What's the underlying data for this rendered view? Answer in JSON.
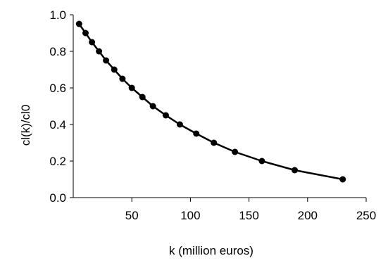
{
  "chart_data": {
    "type": "line",
    "title": "",
    "xlabel": "k (million euros)",
    "ylabel": "cl(k)/cl0",
    "xlim": [
      0,
      250
    ],
    "ylim": [
      0,
      1
    ],
    "x_ticks": [
      50,
      100,
      150,
      200,
      250
    ],
    "x_tick_labels": [
      "50",
      "100",
      "150",
      "200",
      "250"
    ],
    "y_ticks": [
      0,
      0.2,
      0.4,
      0.6,
      0.8,
      1.0
    ],
    "y_tick_labels": [
      "0.0",
      "0.2",
      "0.4",
      "0.6",
      "0.8",
      "1.0"
    ],
    "grid": false,
    "legend": "none",
    "series": [
      {
        "color": "#000000",
        "marker": "circle",
        "points": [
          {
            "x": 5,
            "y": 0.95
          },
          {
            "x": 10.5,
            "y": 0.9
          },
          {
            "x": 16,
            "y": 0.85
          },
          {
            "x": 22,
            "y": 0.8
          },
          {
            "x": 28,
            "y": 0.75
          },
          {
            "x": 35,
            "y": 0.7
          },
          {
            "x": 42,
            "y": 0.65
          },
          {
            "x": 50,
            "y": 0.6
          },
          {
            "x": 59,
            "y": 0.55
          },
          {
            "x": 68,
            "y": 0.5
          },
          {
            "x": 79,
            "y": 0.45
          },
          {
            "x": 91,
            "y": 0.4
          },
          {
            "x": 105,
            "y": 0.35
          },
          {
            "x": 120,
            "y": 0.3
          },
          {
            "x": 138,
            "y": 0.25
          },
          {
            "x": 161,
            "y": 0.2
          },
          {
            "x": 189,
            "y": 0.15
          },
          {
            "x": 230,
            "y": 0.1
          }
        ]
      }
    ]
  }
}
